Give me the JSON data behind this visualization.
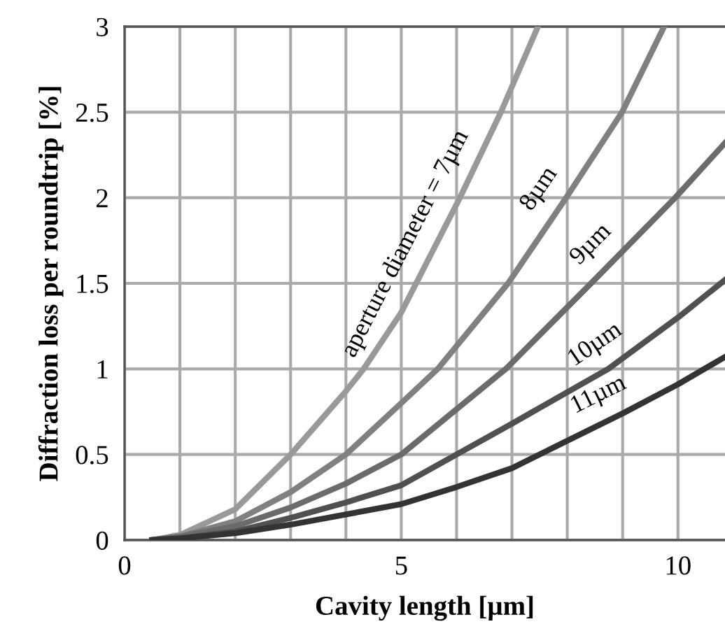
{
  "chart_data": {
    "type": "line",
    "xlabel": "Cavity length [µm]",
    "ylabel": "Diffraction loss per roundtrip [%]",
    "xlim": [
      0,
      10.85
    ],
    "xticks": [
      0,
      5,
      10
    ],
    "ylim": [
      0,
      3
    ],
    "yticks": [
      0,
      0.5,
      1,
      1.5,
      2,
      2.5,
      3
    ],
    "grid": true,
    "marker": "none",
    "line_style": "solid",
    "legend": false,
    "series": [
      {
        "name": "aperture diameter = 7µm",
        "color": "#999999",
        "x": [
          0.5,
          1,
          2,
          3,
          4,
          4.32,
          5,
          6.06,
          6.8,
          7.47
        ],
        "values": [
          0,
          0.03,
          0.18,
          0.5,
          0.87,
          1,
          1.33,
          2,
          2.5,
          3
        ]
      },
      {
        "name": "8µm",
        "color": "#808080",
        "x": [
          0.5,
          1,
          2,
          3,
          4,
          5,
          5.66,
          6.93,
          7.98,
          8.99,
          9.75
        ],
        "values": [
          0,
          0.02,
          0.11,
          0.28,
          0.5,
          0.8,
          1,
          1.5,
          2,
          2.5,
          3
        ]
      },
      {
        "name": "9µm",
        "color": "#6b6b6b",
        "x": [
          0.5,
          1,
          2,
          3,
          4,
          5,
          6.89,
          8.43,
          9.95,
          10.85
        ],
        "values": [
          0,
          0.02,
          0.08,
          0.19,
          0.33,
          0.5,
          1,
          1.5,
          2,
          2.32
        ]
      },
      {
        "name": "10µm",
        "color": "#505050",
        "x": [
          0.5,
          1,
          2,
          3,
          4,
          5,
          6,
          7,
          8.74,
          10,
          10.85
        ],
        "values": [
          0,
          0.01,
          0.05,
          0.13,
          0.22,
          0.32,
          0.5,
          0.68,
          1,
          1.3,
          1.52
        ]
      },
      {
        "name": "11µm",
        "color": "#333333",
        "x": [
          0.5,
          1,
          2,
          3,
          4,
          5,
          6,
          7,
          8,
          9,
          10,
          10.85
        ],
        "values": [
          0,
          0.01,
          0.04,
          0.09,
          0.15,
          0.21,
          0.31,
          0.42,
          0.58,
          0.74,
          0.91,
          1.07
        ]
      }
    ]
  }
}
